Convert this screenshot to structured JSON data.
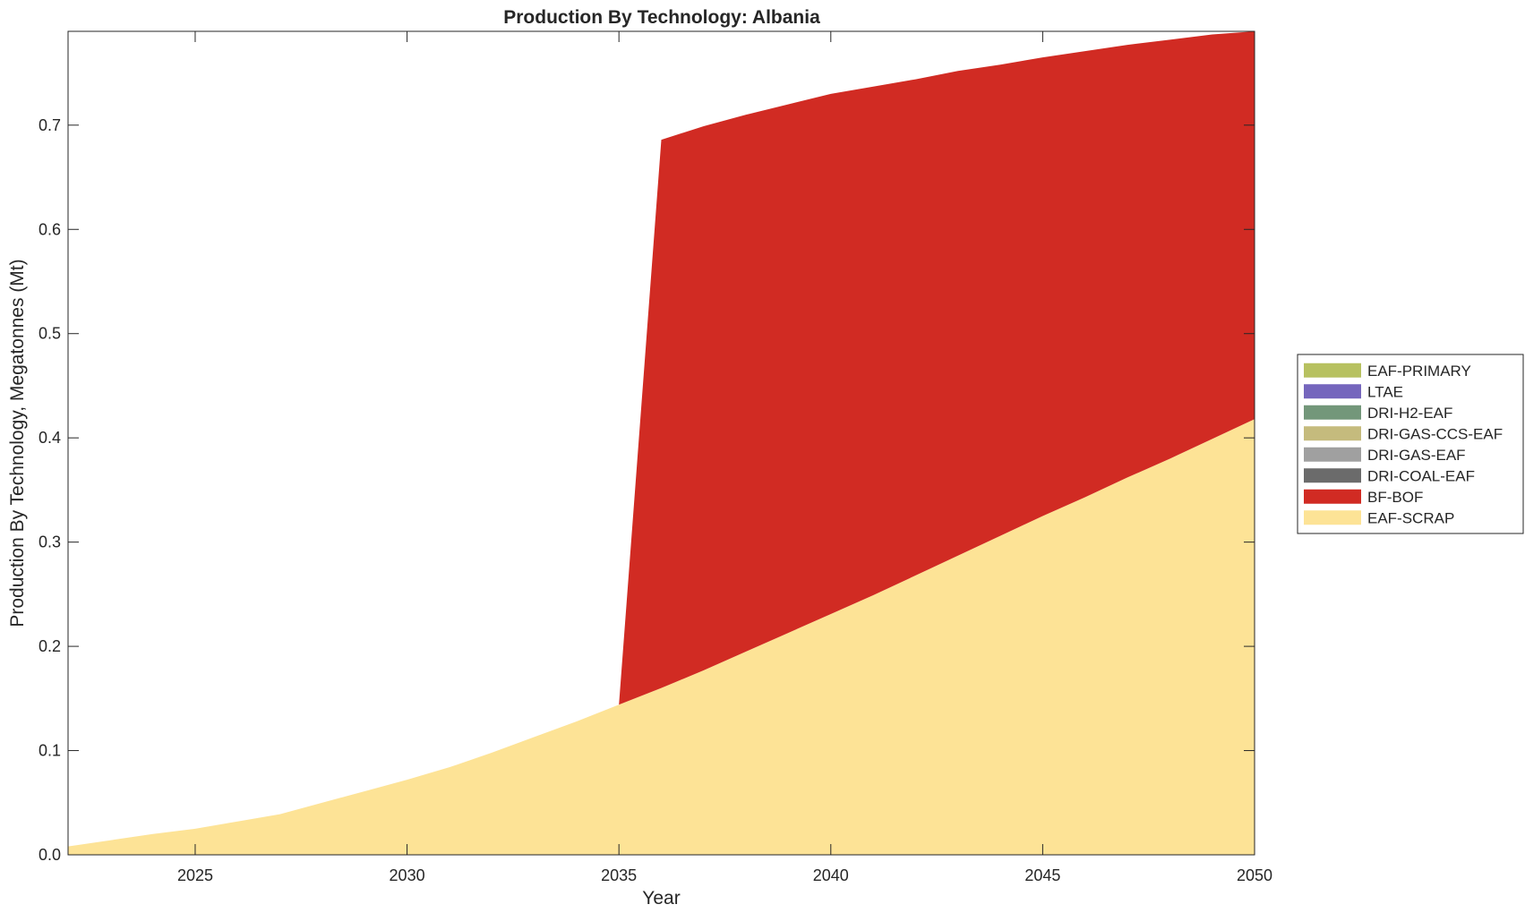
{
  "chart_data": {
    "type": "area",
    "stacked": true,
    "title": "Production By Technology: Albania",
    "xlabel": "Year",
    "ylabel": "Production By Technology, Megatonnes (Mt)",
    "xlim": [
      2022,
      2050
    ],
    "ylim": [
      0,
      0.79
    ],
    "xticks": [
      "2025",
      "2030",
      "2035",
      "2040",
      "2045",
      "2050"
    ],
    "yticks": [
      "0.0",
      "0.1",
      "0.2",
      "0.3",
      "0.4",
      "0.5",
      "0.6",
      "0.7"
    ],
    "grid": false,
    "legend_position": "right",
    "x": [
      2022,
      2023,
      2024,
      2025,
      2026,
      2027,
      2028,
      2029,
      2030,
      2031,
      2032,
      2033,
      2034,
      2035,
      2036,
      2037,
      2038,
      2039,
      2040,
      2041,
      2042,
      2043,
      2044,
      2045,
      2046,
      2047,
      2048,
      2049,
      2050
    ],
    "series": [
      {
        "name": "EAF-SCRAP",
        "color": "#fde396",
        "values": [
          0.008,
          0.014,
          0.02,
          0.025,
          0.032,
          0.039,
          0.05,
          0.061,
          0.072,
          0.084,
          0.098,
          0.113,
          0.128,
          0.144,
          0.16,
          0.177,
          0.195,
          0.213,
          0.231,
          0.249,
          0.268,
          0.287,
          0.306,
          0.325,
          0.343,
          0.362,
          0.38,
          0.399,
          0.418
        ]
      },
      {
        "name": "BF-BOF",
        "color": "#d12b23",
        "values": [
          0,
          0,
          0,
          0,
          0,
          0,
          0,
          0,
          0,
          0,
          0,
          0,
          0,
          0,
          0.526,
          0.522,
          0.515,
          0.507,
          0.499,
          0.488,
          0.476,
          0.465,
          0.452,
          0.44,
          0.428,
          0.415,
          0.402,
          0.388,
          0.372
        ]
      },
      {
        "name": "DRI-COAL-EAF",
        "color": "#6b6b6b",
        "values": [
          0,
          0,
          0,
          0,
          0,
          0,
          0,
          0,
          0,
          0,
          0,
          0,
          0,
          0,
          0,
          0,
          0,
          0,
          0,
          0,
          0,
          0,
          0,
          0,
          0,
          0,
          0,
          0,
          0
        ]
      },
      {
        "name": "DRI-GAS-EAF",
        "color": "#a0a0a0",
        "values": [
          0,
          0,
          0,
          0,
          0,
          0,
          0,
          0,
          0,
          0,
          0,
          0,
          0,
          0,
          0,
          0,
          0,
          0,
          0,
          0,
          0,
          0,
          0,
          0,
          0,
          0,
          0,
          0,
          0
        ]
      },
      {
        "name": "DRI-GAS-CCS-EAF",
        "color": "#c5bb7d",
        "values": [
          0,
          0,
          0,
          0,
          0,
          0,
          0,
          0,
          0,
          0,
          0,
          0,
          0,
          0,
          0,
          0,
          0,
          0,
          0,
          0,
          0,
          0,
          0,
          0,
          0,
          0,
          0,
          0,
          0
        ]
      },
      {
        "name": "DRI-H2-EAF",
        "color": "#73977a",
        "values": [
          0,
          0,
          0,
          0,
          0,
          0,
          0,
          0,
          0,
          0,
          0,
          0,
          0,
          0,
          0,
          0,
          0,
          0,
          0,
          0,
          0,
          0,
          0,
          0,
          0,
          0,
          0,
          0,
          0
        ]
      },
      {
        "name": "LTAE",
        "color": "#7566bd",
        "values": [
          0,
          0,
          0,
          0,
          0,
          0,
          0,
          0,
          0,
          0,
          0,
          0,
          0,
          0,
          0,
          0,
          0,
          0,
          0,
          0,
          0,
          0,
          0,
          0,
          0,
          0,
          0,
          0,
          0
        ]
      },
      {
        "name": "EAF-PRIMARY",
        "color": "#b7c160",
        "values": [
          0,
          0,
          0,
          0,
          0,
          0,
          0,
          0,
          0,
          0,
          0,
          0,
          0,
          0,
          0,
          0,
          0,
          0,
          0,
          0,
          0,
          0,
          0,
          0,
          0,
          0,
          0,
          0,
          0
        ]
      }
    ]
  }
}
